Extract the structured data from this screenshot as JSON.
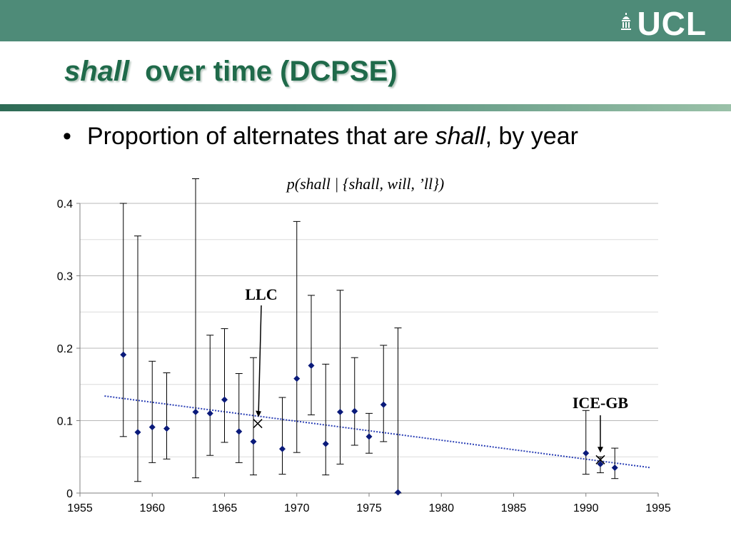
{
  "header": {
    "logo_text": "UCL",
    "title_em": "shall",
    "title_rest": "over time (DCPSE)"
  },
  "bullet": {
    "text_before": "Proportion of alternates that are ",
    "text_em": "shall",
    "text_after": ", by year"
  },
  "colors": {
    "header_bar": "#4e8b78",
    "title": "#1f6a4a",
    "points": "#0a1a7a",
    "trend": "#2a3fb5"
  },
  "chart_data": {
    "type": "scatter",
    "title": "p(shall | {shall, will, ’ll})",
    "xlabel": "",
    "ylabel": "",
    "xlim": [
      1955,
      1995
    ],
    "ylim": [
      0,
      0.4
    ],
    "x_ticks": [
      "1955",
      "1960",
      "1965",
      "1970",
      "1975",
      "1980",
      "1985",
      "1990",
      "1995"
    ],
    "y_ticks": [
      "0",
      "0.1",
      "0.2",
      "0.3",
      "0.4"
    ],
    "grid": "horizontal",
    "series": [
      {
        "marker": "diamond",
        "points": [
          {
            "x": 1958,
            "y": 0.191,
            "lo": 0.078,
            "hi": 0.4
          },
          {
            "x": 1959,
            "y": 0.084,
            "lo": 0.016,
            "hi": 0.355
          },
          {
            "x": 1960,
            "y": 0.091,
            "lo": 0.042,
            "hi": 0.182
          },
          {
            "x": 1961,
            "y": 0.089,
            "lo": 0.047,
            "hi": 0.166
          },
          {
            "x": 1963,
            "y": 0.112,
            "lo": 0.021,
            "hi": 0.434
          },
          {
            "x": 1964,
            "y": 0.11,
            "lo": 0.052,
            "hi": 0.218
          },
          {
            "x": 1965,
            "y": 0.129,
            "lo": 0.07,
            "hi": 0.227
          },
          {
            "x": 1966,
            "y": 0.085,
            "lo": 0.042,
            "hi": 0.165
          },
          {
            "x": 1967,
            "y": 0.071,
            "lo": 0.025,
            "hi": 0.187
          },
          {
            "x": 1969,
            "y": 0.061,
            "lo": 0.026,
            "hi": 0.132
          },
          {
            "x": 1970,
            "y": 0.158,
            "lo": 0.056,
            "hi": 0.375
          },
          {
            "x": 1971,
            "y": 0.176,
            "lo": 0.108,
            "hi": 0.273
          },
          {
            "x": 1972,
            "y": 0.068,
            "lo": 0.025,
            "hi": 0.178
          },
          {
            "x": 1973,
            "y": 0.112,
            "lo": 0.04,
            "hi": 0.28
          },
          {
            "x": 1974,
            "y": 0.113,
            "lo": 0.066,
            "hi": 0.187
          },
          {
            "x": 1975,
            "y": 0.078,
            "lo": 0.055,
            "hi": 0.11
          },
          {
            "x": 1976,
            "y": 0.122,
            "lo": 0.071,
            "hi": 0.204
          },
          {
            "x": 1977,
            "y": 0.001,
            "lo": 0.0,
            "hi": 0.228
          },
          {
            "x": 1990,
            "y": 0.055,
            "lo": 0.026,
            "hi": 0.114
          },
          {
            "x": 1991,
            "y": 0.04,
            "lo": 0.028,
            "hi": 0.05
          },
          {
            "x": 1992,
            "y": 0.035,
            "lo": 0.02,
            "hi": 0.062
          }
        ]
      }
    ],
    "trendline": {
      "x": [
        1956.7,
        1994.5
      ],
      "y": [
        0.134,
        0.035
      ],
      "style": "dotted"
    },
    "annotations": [
      {
        "label": "LLC",
        "marker": "x",
        "x": 1967.3,
        "y": 0.096
      },
      {
        "label": "ICE-GB",
        "marker": "x",
        "x": 1991.0,
        "y": 0.046
      }
    ]
  }
}
